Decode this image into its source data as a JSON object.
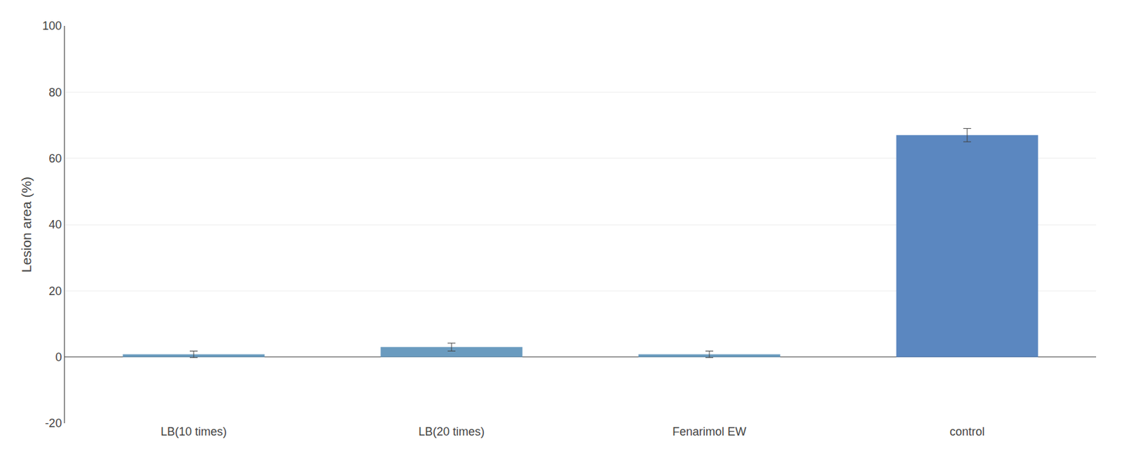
{
  "chart_data": {
    "type": "bar",
    "categories": [
      "LB(10 times)",
      "LB(20 times)",
      "Fenarimol EW",
      "control"
    ],
    "values": [
      0.8,
      3.0,
      0.8,
      67.0
    ],
    "errors": [
      1.0,
      1.2,
      1.0,
      2.0
    ],
    "colors": [
      "#6a9bbf",
      "#6a9bbf",
      "#6a9bbf",
      "#5b87c0"
    ],
    "ylabel": "Lesion area (%)",
    "ylim": [
      -20,
      100
    ],
    "yticks": [
      -20,
      0,
      20,
      40,
      60,
      80,
      100
    ],
    "grid": true
  }
}
